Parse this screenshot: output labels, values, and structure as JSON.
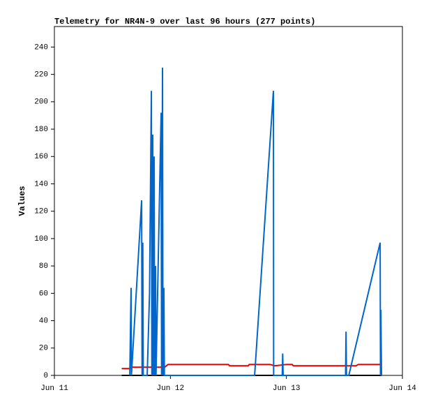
{
  "chart_data": {
    "type": "line",
    "title": "Telemetry for NR4N-9 over last 96 hours (277 points)",
    "y_label": "Values",
    "xlim": [
      0,
      3
    ],
    "xticks": [
      {
        "value": 0,
        "label": "Jun 11"
      },
      {
        "value": 1,
        "label": "Jun 12"
      },
      {
        "value": 2,
        "label": "Jun 13"
      },
      {
        "value": 3,
        "label": "Jun 14"
      }
    ],
    "ylim": [
      0,
      255
    ],
    "yticks": [
      0,
      20,
      40,
      60,
      80,
      100,
      120,
      140,
      160,
      180,
      200,
      220,
      240
    ],
    "grid": false,
    "series": [
      {
        "color": "#000000",
        "x": [
          0.58,
          2.82
        ],
        "values": [
          0,
          0
        ]
      },
      {
        "color": "#e00000",
        "x": [
          0.58,
          0.65,
          0.66,
          0.95,
          0.98,
          1.5,
          1.51,
          1.67,
          1.68,
          1.86,
          1.9,
          2.0,
          2.05,
          2.06,
          2.6,
          2.62,
          2.82
        ],
        "values": [
          5,
          5,
          6,
          6,
          8,
          8,
          7,
          7,
          8,
          8,
          7,
          8,
          8,
          7,
          7,
          8,
          8
        ]
      },
      {
        "color": "#0066cc",
        "x": [
          0.65,
          0.661,
          0.664,
          0.752,
          0.756,
          0.762,
          0.766,
          0.8,
          0.82,
          0.836,
          0.84,
          0.848,
          0.852,
          0.86,
          0.864,
          0.872,
          0.876,
          0.92,
          0.924,
          0.932,
          0.936,
          0.944,
          0.948,
          1.726,
          1.888,
          1.89,
          1.964,
          1.968,
          1.972,
          2.51,
          2.514,
          2.518,
          2.538,
          2.808,
          2.811,
          2.814,
          2.82
        ],
        "values": [
          0,
          64,
          0,
          128,
          0,
          97,
          0,
          0,
          60,
          208,
          0,
          176,
          0,
          160,
          0,
          80,
          0,
          192,
          0,
          225,
          0,
          64,
          0,
          0,
          208,
          0,
          0,
          16,
          0,
          0,
          32,
          0,
          0,
          97,
          0,
          48,
          0
        ]
      }
    ]
  }
}
